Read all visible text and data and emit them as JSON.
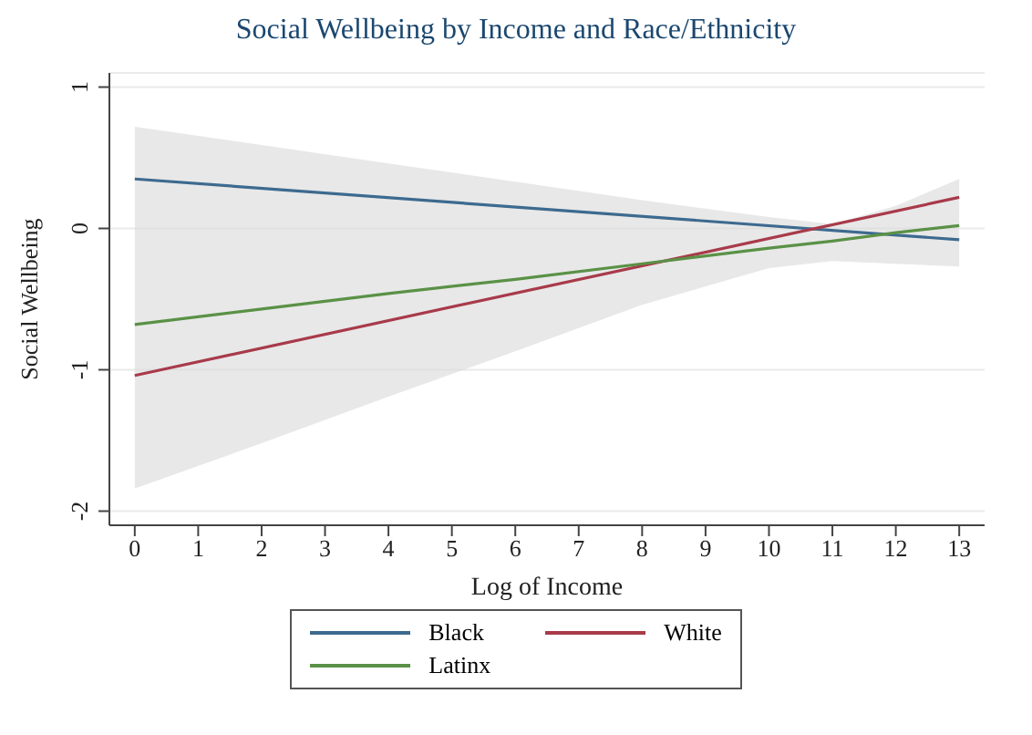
{
  "chart_data": {
    "type": "line",
    "title": "Social Wellbeing by Income and Race/Ethnicity",
    "xlabel": "Log of Income",
    "ylabel": "Social Wellbeing",
    "xlim": [
      -0.4,
      13.4
    ],
    "xticks": [
      0,
      1,
      2,
      3,
      4,
      5,
      6,
      7,
      8,
      9,
      10,
      11,
      12,
      13
    ],
    "ylim": [
      -2.1,
      1.1
    ],
    "yticks": [
      -2,
      -1,
      0,
      1
    ],
    "grid": "y",
    "legend": "bottom",
    "line_style": "solid",
    "marker": "none",
    "series": [
      {
        "name": "Black",
        "color": "#3d6a8f",
        "x": [
          0,
          13
        ],
        "values": [
          0.35,
          -0.08
        ]
      },
      {
        "name": "White",
        "color": "#a83a4a",
        "x": [
          0,
          13
        ],
        "values": [
          -1.04,
          0.22
        ]
      },
      {
        "name": "Latinx",
        "color": "#5a9146",
        "x": [
          0,
          2,
          4,
          6,
          8,
          10,
          11,
          12,
          13
        ],
        "values": [
          -0.68,
          -0.57,
          -0.46,
          -0.36,
          -0.25,
          -0.14,
          -0.09,
          -0.03,
          0.02
        ],
        "lower": [
          -1.84,
          -1.52,
          -1.19,
          -0.87,
          -0.54,
          -0.28,
          -0.23,
          -0.25,
          -0.27
        ],
        "upper": [
          0.72,
          0.59,
          0.46,
          0.33,
          0.2,
          0.08,
          0.03,
          0.16,
          0.35
        ]
      }
    ]
  }
}
